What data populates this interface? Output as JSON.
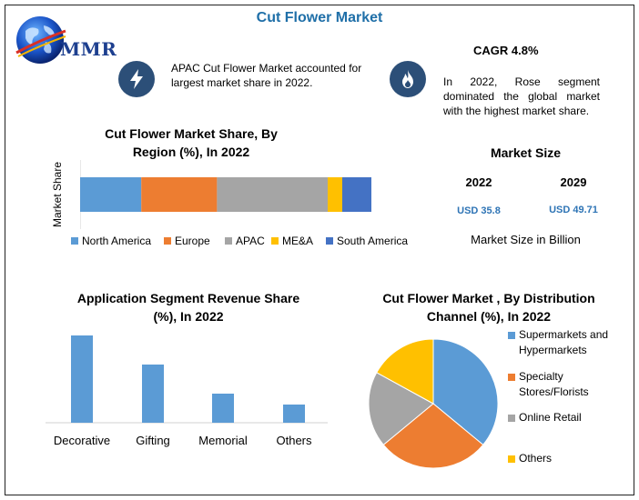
{
  "header": {
    "title": "Cut Flower Market",
    "logo_text": "MMR"
  },
  "highlights": {
    "apac_note": "APAC Cut Flower Market accounted for largest market share in 2022.",
    "cagr_label": "CAGR 4.8%",
    "rose_note": "In 2022, Rose segment dominated the global market with the highest market share."
  },
  "market_size": {
    "title": "Market Size",
    "year_a": "2022",
    "value_a": "USD 35.8",
    "year_b": "2029",
    "value_b": "USD 49.71",
    "caption": "Market Size in Billion"
  },
  "colors": {
    "blue": "#5b9bd5",
    "orange": "#ed7d31",
    "gray": "#a5a5a5",
    "yellow": "#ffc000",
    "dark_blue": "#4472c4",
    "badge": "#2c4f78",
    "title": "#1f6fa8"
  },
  "chart_data": [
    {
      "type": "bar",
      "orientation": "horizontal-stacked",
      "title": "Cut Flower Market Share, By Region (%), In 2022",
      "ylabel": "Market Share",
      "xlim": [
        0,
        100
      ],
      "series": [
        {
          "name": "North America",
          "values": [
            21
          ],
          "color": "#5b9bd5"
        },
        {
          "name": "Europe",
          "values": [
            26
          ],
          "color": "#ed7d31"
        },
        {
          "name": "APAC",
          "values": [
            38
          ],
          "color": "#a5a5a5"
        },
        {
          "name": "ME&A",
          "values": [
            5
          ],
          "color": "#ffc000"
        },
        {
          "name": "South America",
          "values": [
            10
          ],
          "color": "#4472c4"
        }
      ],
      "legend": "bottom"
    },
    {
      "type": "bar",
      "title": "Application Segment Revenue Share (%), In 2022",
      "categories": [
        "Decorative",
        "Gifting",
        "Memorial",
        "Others"
      ],
      "values": [
        48,
        32,
        16,
        10
      ],
      "ylim": [
        0,
        50
      ],
      "color": "#5b9bd5"
    },
    {
      "type": "pie",
      "title": "Cut Flower Market , By Distribution Channel (%), In 2022",
      "labels": [
        "Supermarkets and Hypermarkets",
        "Specialty Stores/Florists",
        "Online Retail",
        "Others"
      ],
      "values": [
        36,
        28,
        19,
        17
      ],
      "colors": [
        "#5b9bd5",
        "#ed7d31",
        "#a5a5a5",
        "#ffc000"
      ],
      "legend": "right"
    }
  ]
}
